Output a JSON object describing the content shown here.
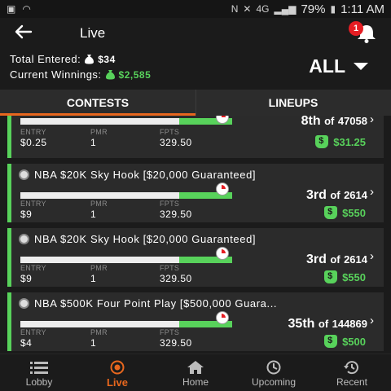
{
  "statusbar": {
    "battery": "79%",
    "time": "1:11 AM",
    "network": "4G"
  },
  "header": {
    "title": "Live",
    "notification_count": "1"
  },
  "summary": {
    "total_entered_label": "Total  Entered:",
    "total_entered_value": "$34",
    "current_winnings_label": "Current  Winnings:",
    "current_winnings_value": "$2,585",
    "filter_value": "ALL"
  },
  "tabs": [
    {
      "label": "CONTESTS",
      "active": true
    },
    {
      "label": "LINEUPS",
      "active": false
    }
  ],
  "contests": [
    {
      "name": "",
      "entry_label": "ENTRY",
      "entry": "$0.25",
      "pmr_label": "PMR",
      "pmr": "1",
      "fpts_label": "FPTS",
      "fpts": "329.50",
      "rank": "8th",
      "of_label": "of",
      "total": "47058",
      "winnings": "$31.25",
      "progress": 0.75
    },
    {
      "name": "NBA $20K Sky Hook [$20,000 Guaranteed]",
      "entry_label": "ENTRY",
      "entry": "$9",
      "pmr_label": "PMR",
      "pmr": "1",
      "fpts_label": "FPTS",
      "fpts": "329.50",
      "rank": "3rd",
      "of_label": "of",
      "total": "2614",
      "winnings": "$550",
      "progress": 0.75
    },
    {
      "name": "NBA $20K Sky Hook [$20,000 Guaranteed]",
      "entry_label": "ENTRY",
      "entry": "$9",
      "pmr_label": "PMR",
      "pmr": "1",
      "fpts_label": "FPTS",
      "fpts": "329.50",
      "rank": "3rd",
      "of_label": "of",
      "total": "2614",
      "winnings": "$550",
      "progress": 0.75
    },
    {
      "name": "NBA $500K Four Point Play [$500,000 Guara...",
      "entry_label": "ENTRY",
      "entry": "$4",
      "pmr_label": "PMR",
      "pmr": "1",
      "fpts_label": "FPTS",
      "fpts": "329.50",
      "rank": "35th",
      "of_label": "of",
      "total": "144869",
      "winnings": "$500",
      "progress": 0.75
    }
  ],
  "bottom_nav": [
    {
      "label": "Lobby",
      "icon": "list-icon",
      "active": false
    },
    {
      "label": "Live",
      "icon": "live-icon",
      "active": true
    },
    {
      "label": "Home",
      "icon": "home-icon",
      "active": false
    },
    {
      "label": "Upcoming",
      "icon": "clock-icon",
      "active": false
    },
    {
      "label": "Recent",
      "icon": "history-icon",
      "active": false
    }
  ],
  "colors": {
    "accent_green": "#58d25b",
    "accent_orange": "#e8671e",
    "badge_red": "#e51d23",
    "card_bg": "#2b2b2b",
    "page_bg": "#1b1b1b"
  }
}
